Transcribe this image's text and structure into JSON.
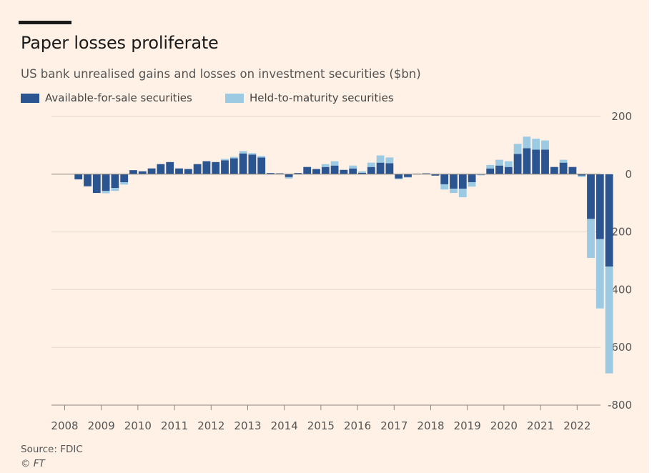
{
  "header": {
    "title": "Paper losses proliferate",
    "subtitle": "US bank unrealised gains and losses on investment securities ($bn)"
  },
  "footer": {
    "source": "Source: FDIC",
    "credit": "© FT"
  },
  "colors": {
    "background": "#fff1e5",
    "afs": "#2b5590",
    "htm": "#9dcae3",
    "grid": "#e4d8cc",
    "zero_line": "#8c857e"
  },
  "chart_data": {
    "type": "bar",
    "stacked": true,
    "title": "Paper losses proliferate",
    "subtitle": "US bank unrealised gains and losses on investment securities ($bn)",
    "xlabel": "",
    "ylabel": "",
    "ylim": [
      -800,
      200
    ],
    "yticks": [
      200,
      0,
      -200,
      -400,
      -600,
      -800
    ],
    "ytick_labels": [
      "200",
      "0",
      "-200",
      "-400",
      "-600",
      "-800"
    ],
    "y_axis_position": "right",
    "grid": true,
    "legend_position": "top-left",
    "xtick_labels": [
      "2008",
      "2009",
      "2010",
      "2011",
      "2012",
      "2013",
      "2014",
      "2015",
      "2016",
      "2017",
      "2018",
      "2019",
      "2020",
      "2021",
      "2022"
    ],
    "categories": [
      "2008Q1",
      "2008Q2",
      "2008Q3",
      "2008Q4",
      "2009Q1",
      "2009Q2",
      "2009Q3",
      "2009Q4",
      "2010Q1",
      "2010Q2",
      "2010Q3",
      "2010Q4",
      "2011Q1",
      "2011Q2",
      "2011Q3",
      "2011Q4",
      "2012Q1",
      "2012Q2",
      "2012Q3",
      "2012Q4",
      "2013Q1",
      "2013Q2",
      "2013Q3",
      "2013Q4",
      "2014Q1",
      "2014Q2",
      "2014Q3",
      "2014Q4",
      "2015Q1",
      "2015Q2",
      "2015Q3",
      "2015Q4",
      "2016Q1",
      "2016Q2",
      "2016Q3",
      "2016Q4",
      "2017Q1",
      "2017Q2",
      "2017Q3",
      "2017Q4",
      "2018Q1",
      "2018Q2",
      "2018Q3",
      "2018Q4",
      "2019Q1",
      "2019Q2",
      "2019Q3",
      "2019Q4",
      "2020Q1",
      "2020Q2",
      "2020Q3",
      "2020Q4",
      "2021Q1",
      "2021Q2",
      "2021Q3",
      "2021Q4",
      "2022Q1",
      "2022Q2",
      "2022Q3",
      "2022Q4"
    ],
    "series": [
      {
        "name": "Available-for-sale securities",
        "color": "#2b5590",
        "values": [
          0,
          -18,
          -42,
          -65,
          -58,
          -48,
          -28,
          14,
          10,
          20,
          35,
          42,
          20,
          18,
          35,
          45,
          42,
          48,
          55,
          72,
          68,
          58,
          4,
          3,
          -10,
          4,
          25,
          18,
          25,
          30,
          15,
          20,
          5,
          25,
          40,
          38,
          -15,
          -10,
          2,
          3,
          -5,
          -35,
          -50,
          -50,
          -28,
          -2,
          20,
          30,
          25,
          70,
          90,
          85,
          85,
          25,
          40,
          25,
          -5,
          -155,
          -225,
          -320
        ]
      },
      {
        "name": "Held-to-maturity securities",
        "color": "#9dcae3",
        "values": [
          0,
          0,
          0,
          0,
          -8,
          -10,
          -8,
          0,
          0,
          0,
          0,
          0,
          0,
          0,
          0,
          0,
          0,
          5,
          5,
          8,
          5,
          5,
          0,
          0,
          -5,
          0,
          0,
          0,
          10,
          15,
          0,
          10,
          5,
          15,
          25,
          20,
          -3,
          -2,
          0,
          0,
          0,
          -18,
          -15,
          -30,
          -15,
          -2,
          12,
          20,
          20,
          35,
          40,
          38,
          32,
          0,
          10,
          0,
          -5,
          -135,
          -240,
          -370
        ]
      }
    ]
  }
}
